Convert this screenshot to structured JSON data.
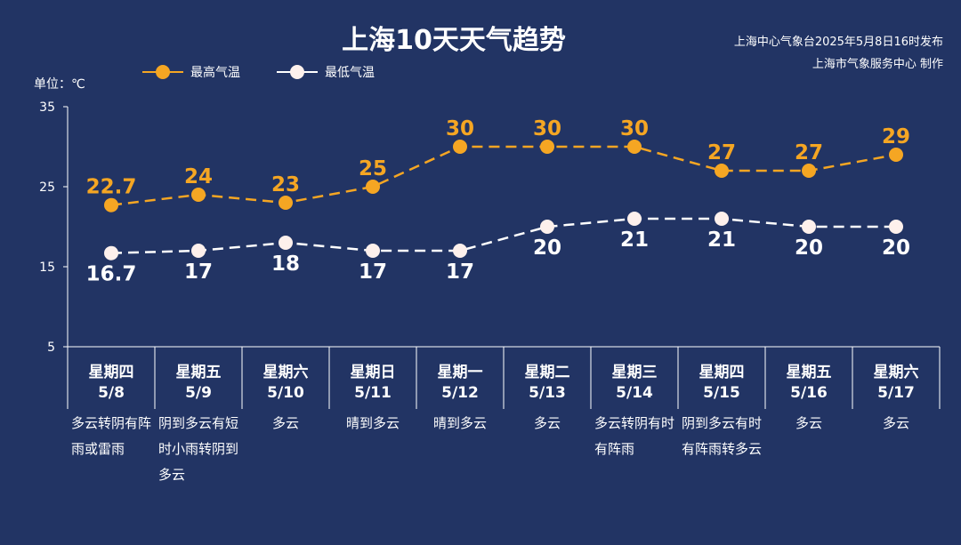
{
  "title": "上海10天天气趋势",
  "issuer_line1": "上海中心气象台2025年5月8日16时发布",
  "issuer_line2": "上海市气象服务中心 制作",
  "unit_label": "单位：℃",
  "colors": {
    "background": "#223464",
    "high": "#f5a623",
    "low": "#ffffff",
    "low_marker": "#fdf0ec"
  },
  "chart_data": {
    "type": "line",
    "title": "上海10天天气趋势",
    "categories": [
      "5/8",
      "5/9",
      "5/10",
      "5/11",
      "5/12",
      "5/13",
      "5/14",
      "5/15",
      "5/16",
      "5/17"
    ],
    "weekdays": [
      "星期四",
      "星期五",
      "星期六",
      "星期日",
      "星期一",
      "星期二",
      "星期三",
      "星期四",
      "星期五",
      "星期六"
    ],
    "weather": [
      "多云转阴有阵雨或雷雨",
      "阴到多云有短时小雨转阴到多云",
      "多云",
      "晴到多云",
      "晴到多云",
      "多云",
      "多云转阴有时有阵雨",
      "阴到多云有时有阵雨转多云",
      "多云",
      "多云"
    ],
    "series": [
      {
        "name": "最高气温",
        "values": [
          22.7,
          24,
          23,
          25,
          30,
          30,
          30,
          27,
          27,
          29
        ],
        "labels": [
          "22.7",
          "24",
          "23",
          "25",
          "30",
          "30",
          "30",
          "27",
          "27",
          "29"
        ]
      },
      {
        "name": "最低气温",
        "values": [
          16.7,
          17,
          18,
          17,
          17,
          20,
          21,
          21,
          20,
          20
        ],
        "labels": [
          "16.7",
          "17",
          "18",
          "17",
          "17",
          "20",
          "21",
          "21",
          "20",
          "20"
        ]
      }
    ],
    "ylim": [
      5,
      35
    ],
    "yticks": [
      5,
      15,
      25,
      35
    ],
    "grid": false,
    "legend_position": "top-left"
  }
}
